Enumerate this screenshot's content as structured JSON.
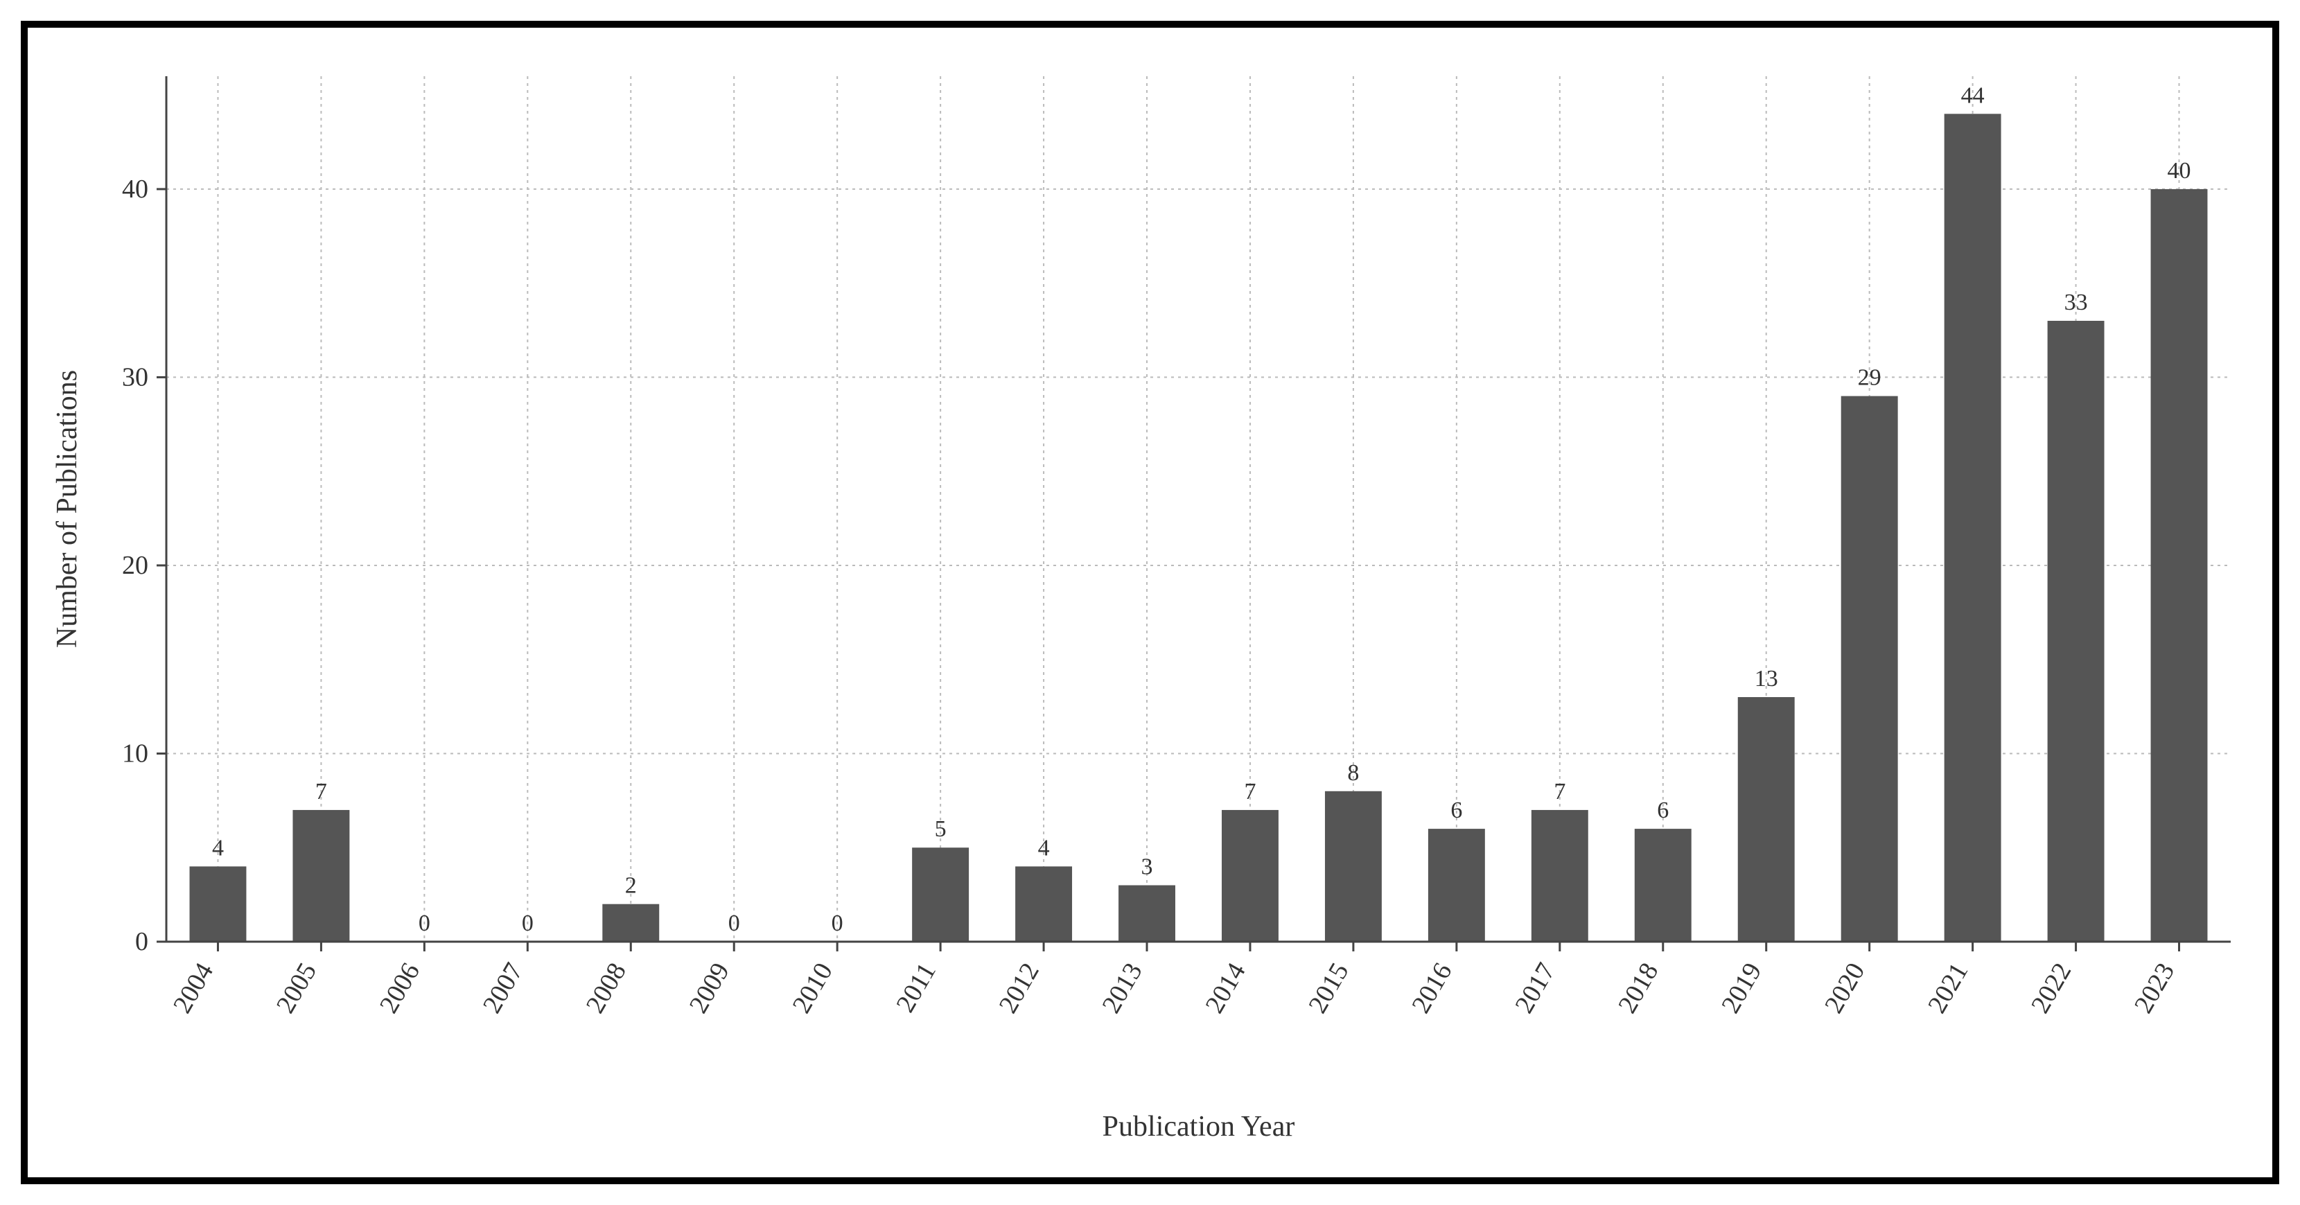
{
  "chart": {
    "type": "bar",
    "xlabel": "Publication Year",
    "ylabel": "Number of Publications",
    "categories": [
      "2004",
      "2005",
      "2006",
      "2007",
      "2008",
      "2009",
      "2010",
      "2011",
      "2012",
      "2013",
      "2014",
      "2015",
      "2016",
      "2017",
      "2018",
      "2019",
      "2020",
      "2021",
      "2022",
      "2023"
    ],
    "values": [
      4,
      7,
      0,
      0,
      2,
      0,
      0,
      5,
      4,
      3,
      7,
      8,
      6,
      7,
      6,
      13,
      29,
      44,
      33,
      40
    ],
    "bar_color": "#555555",
    "background_color": "#ffffff",
    "grid_color": "#bbbbbb",
    "spine_color": "#444444",
    "text_color": "#333333",
    "ylim": [
      0,
      46
    ],
    "yticks": [
      0,
      10,
      20,
      30,
      40
    ],
    "bar_width_ratio": 0.55,
    "xlabel_fontsize": 42,
    "ylabel_fontsize": 42,
    "tick_fontsize": 38,
    "value_fontsize": 34,
    "xlabel_rotation": 60,
    "outer_border_color": "#000000",
    "outer_border_width": 10
  }
}
